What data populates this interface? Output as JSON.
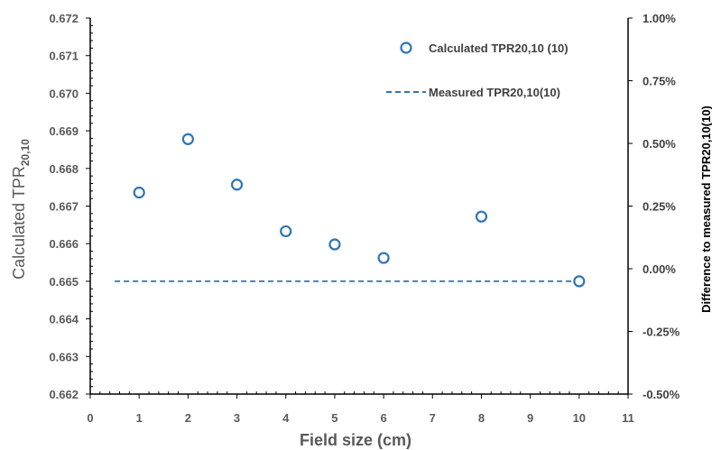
{
  "chart_data": {
    "type": "scatter",
    "xlabel": "Field size (cm)",
    "ylabel": {
      "main": "Calculated TPR",
      "sub": "20,10"
    },
    "y2label": "Difference  to measured TPR20,10(10)",
    "xlim": [
      0,
      11
    ],
    "ylim": [
      0.662,
      0.672
    ],
    "y2lim": [
      -0.5,
      1.0
    ],
    "x_ticks": [
      "0",
      "1",
      "2",
      "3",
      "4",
      "5",
      "6",
      "7",
      "8",
      "9",
      "10",
      "11"
    ],
    "y_ticks": [
      "0.662",
      "0.663",
      "0.664",
      "0.665",
      "0.666",
      "0.667",
      "0.668",
      "0.669",
      "0.670",
      "0.671",
      "0.672"
    ],
    "y2_ticks": [
      "-0.50%",
      "-0.25%",
      "0.00%",
      "0.25%",
      "0.50%",
      "0.75%",
      "1.00%"
    ],
    "grid": false,
    "legend_position": "top-right",
    "colors": {
      "series": "#2e75b6",
      "axis": "#000000",
      "text": "#595959"
    },
    "series": [
      {
        "name": "Calculated TPR20,10 (10)",
        "kind": "scatter",
        "marker": "open-circle",
        "points": [
          {
            "x": 1,
            "y": 0.66736
          },
          {
            "x": 2,
            "y": 0.66878
          },
          {
            "x": 3,
            "y": 0.66757
          },
          {
            "x": 4,
            "y": 0.66633
          },
          {
            "x": 5,
            "y": 0.66598
          },
          {
            "x": 6,
            "y": 0.66562
          },
          {
            "x": 8,
            "y": 0.66672
          },
          {
            "x": 10,
            "y": 0.665
          }
        ]
      },
      {
        "name": "Measured TPR20,10(10)",
        "kind": "line",
        "style": "dashed",
        "points": [
          {
            "x": 0.5,
            "y": 0.665
          },
          {
            "x": 10,
            "y": 0.665
          }
        ]
      }
    ]
  }
}
